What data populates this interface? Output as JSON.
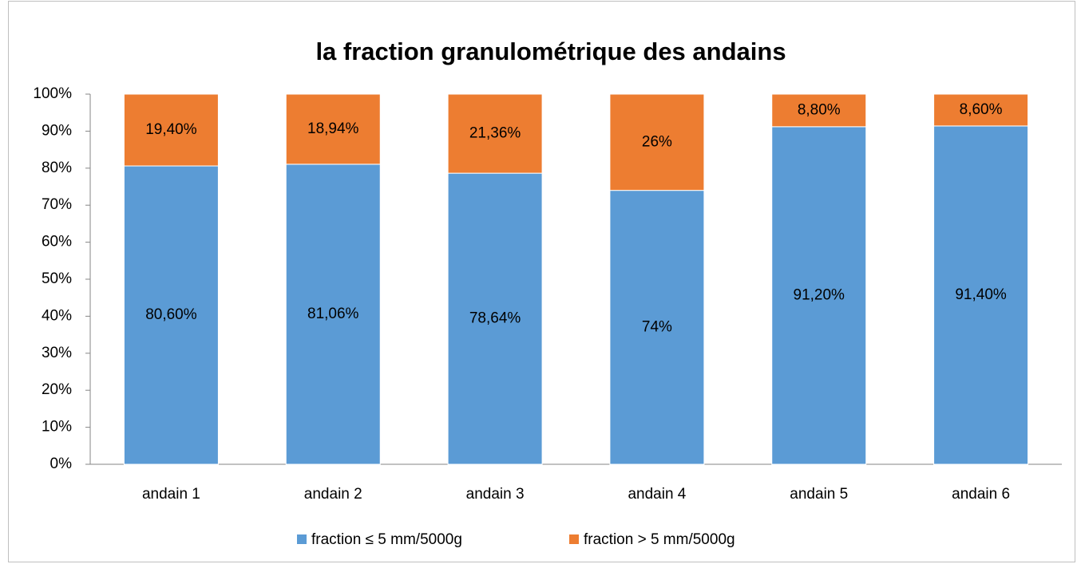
{
  "chart_data": {
    "type": "stacked_bar",
    "title": "la fraction granulométrique des andains",
    "categories": [
      "andain 1",
      "andain 2",
      "andain 3",
      "andain 4",
      "andain 5",
      "andain 6"
    ],
    "series": [
      {
        "name": "fraction ≤ 5 mm/5000g",
        "color": "#5b9bd5",
        "values": [
          80.6,
          81.06,
          78.64,
          74,
          91.2,
          91.4
        ],
        "value_labels": [
          "80,60%",
          "81,06%",
          "78,64%",
          "74%",
          "91,20%",
          "91,40%"
        ]
      },
      {
        "name": "fraction > 5 mm/5000g",
        "color": "#ed7d31",
        "values": [
          19.4,
          18.94,
          21.36,
          26,
          8.8,
          8.6
        ],
        "value_labels": [
          "19,40%",
          "18,94%",
          "21,36%",
          "26%",
          "8,80%",
          "8,60%"
        ]
      }
    ],
    "ylim": [
      0,
      100
    ],
    "yticks": [
      {
        "value": 0,
        "label": "0%"
      },
      {
        "value": 10,
        "label": "10%"
      },
      {
        "value": 20,
        "label": "20%"
      },
      {
        "value": 30,
        "label": "30%"
      },
      {
        "value": 40,
        "label": "40%"
      },
      {
        "value": 50,
        "label": "50%"
      },
      {
        "value": 60,
        "label": "60%"
      },
      {
        "value": 70,
        "label": "70%"
      },
      {
        "value": 80,
        "label": "80%"
      },
      {
        "value": 90,
        "label": "90%"
      },
      {
        "value": 100,
        "label": "100%"
      }
    ],
    "legend": "bottom"
  }
}
